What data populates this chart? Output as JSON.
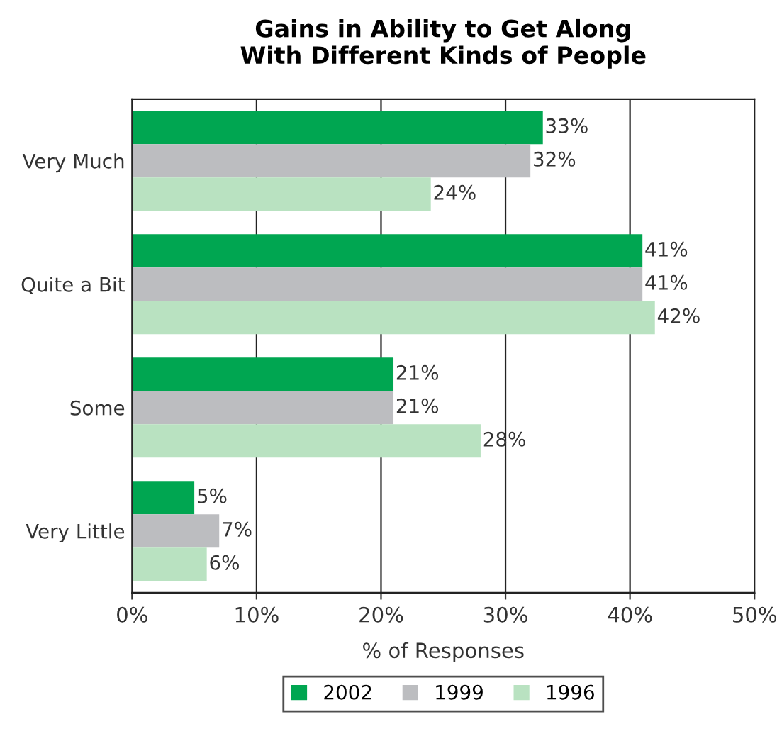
{
  "chart_data": {
    "type": "bar",
    "orientation": "horizontal",
    "title": "Gains in Ability to Get Along\nWith Different Kinds of People",
    "xlabel": "% of Responses",
    "categories": [
      "Very Much",
      "Quite a Bit",
      "Some",
      "Very Little"
    ],
    "series": [
      {
        "name": "2002",
        "color": "#00a651",
        "values": [
          33,
          41,
          21,
          5
        ],
        "value_labels": [
          "33%",
          "41%",
          "21%",
          "5%"
        ]
      },
      {
        "name": "1999",
        "color": "#bcbdc0",
        "values": [
          32,
          41,
          21,
          7
        ],
        "value_labels": [
          "32%",
          "41%",
          "21%",
          "7%"
        ]
      },
      {
        "name": "1996",
        "color": "#b9e2c1",
        "values": [
          24,
          42,
          28,
          6
        ],
        "value_labels": [
          "24%",
          "42%",
          "28%",
          "6%"
        ]
      }
    ],
    "xlim": [
      0,
      50
    ],
    "xticks": [
      {
        "value": 0,
        "label": "0%"
      },
      {
        "value": 10,
        "label": "10%"
      },
      {
        "value": 20,
        "label": "20%"
      },
      {
        "value": 30,
        "label": "30%"
      },
      {
        "value": 40,
        "label": "40%"
      },
      {
        "value": 50,
        "label": "50%"
      }
    ],
    "grid": "x",
    "legend": "bottom"
  }
}
